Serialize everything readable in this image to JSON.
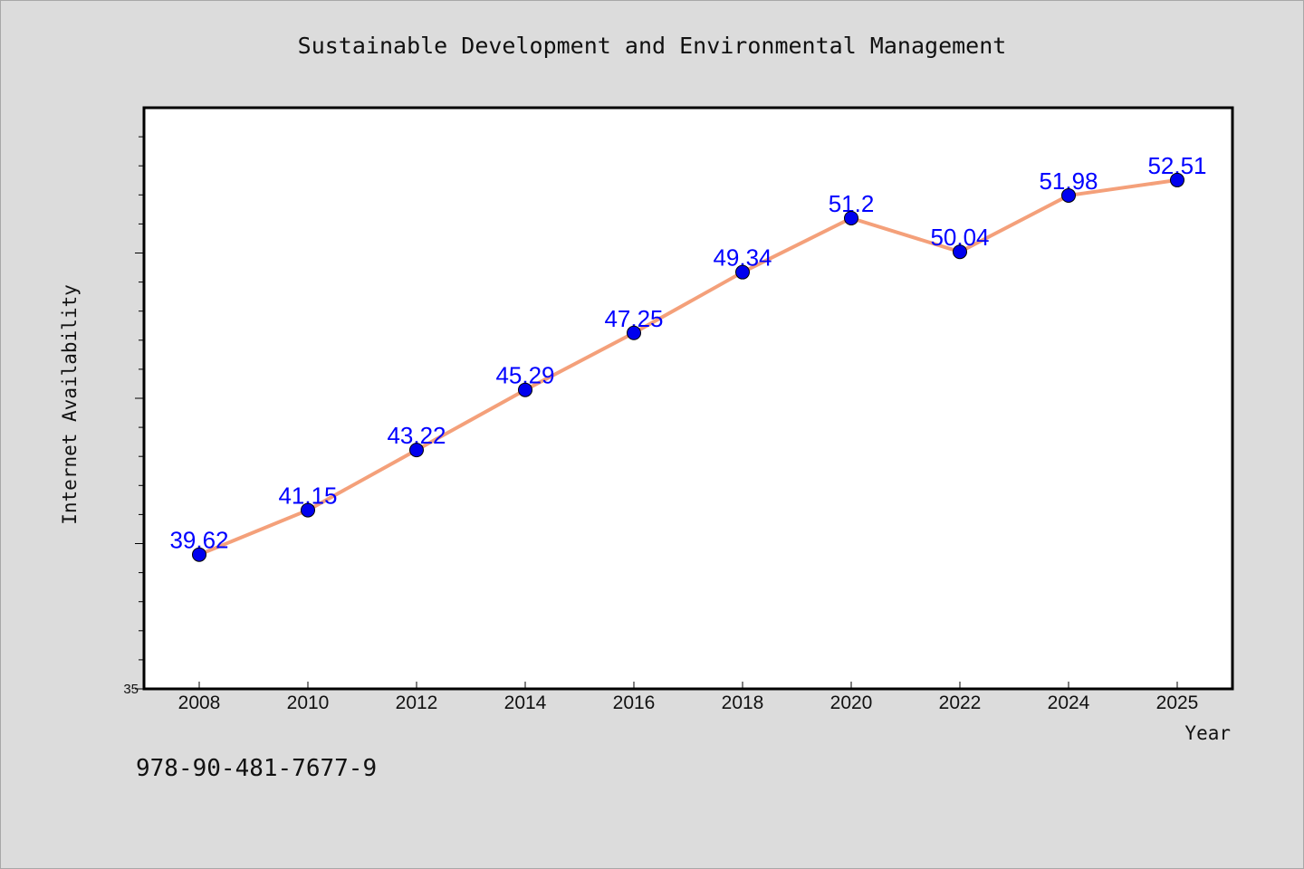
{
  "title": "Sustainable Development and Environmental Management",
  "footer_code": "978-90-481-7677-9",
  "colors": {
    "background": "#dcdcdc",
    "plot_background": "#ffffff",
    "line": "#f4a07a",
    "marker": "#0000ee",
    "data_label": "#0000ff"
  },
  "chart_data": {
    "type": "line",
    "title": "Sustainable Development and Environmental Management",
    "xlabel": "Year",
    "ylabel": "Internet Availability",
    "x": [
      "2008",
      "2010",
      "2012",
      "2014",
      "2016",
      "2018",
      "2020",
      "2022",
      "2024",
      "2025"
    ],
    "series": [
      {
        "values": [
          39.62,
          41.15,
          43.22,
          45.29,
          47.25,
          49.34,
          51.2,
          50.04,
          51.98,
          52.51
        ]
      }
    ],
    "data_labels": [
      "39.62",
      "41.15",
      "43.22",
      "45.29",
      "47.25",
      "49.34",
      "51.2",
      "50.04",
      "51.98",
      "52.51"
    ],
    "ylim": [
      35,
      55
    ],
    "y_tick_labels": [
      "35"
    ],
    "grid": false,
    "legend": "none"
  }
}
